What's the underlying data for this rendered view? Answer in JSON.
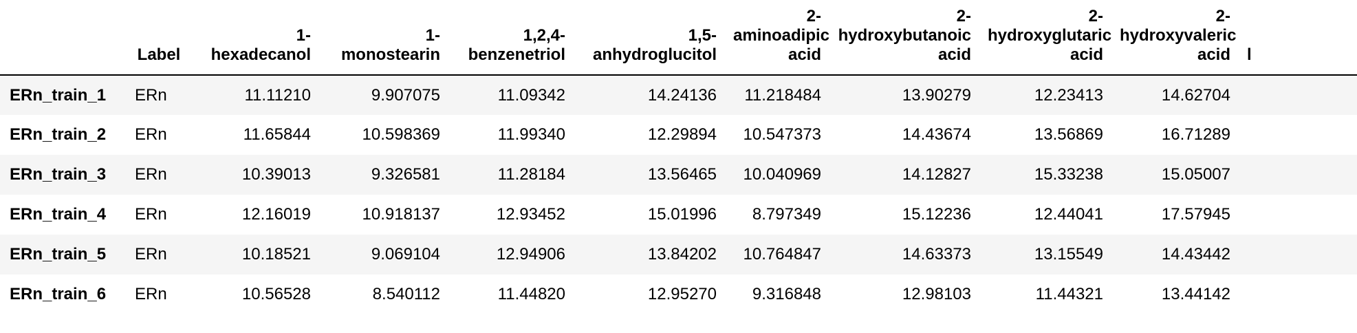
{
  "table": {
    "index_header": "",
    "columns": [
      {
        "lines": [
          "Label"
        ]
      },
      {
        "lines": [
          "1-",
          "hexadecanol"
        ]
      },
      {
        "lines": [
          "1-",
          "monostearin"
        ]
      },
      {
        "lines": [
          "1,2,4-",
          "benzenetriol"
        ]
      },
      {
        "lines": [
          "1,5-",
          "anhydroglucitol"
        ]
      },
      {
        "lines": [
          "2-",
          "aminoadipic",
          "acid"
        ]
      },
      {
        "lines": [
          "2-",
          "hydroxybutanoic",
          "acid"
        ]
      },
      {
        "lines": [
          "2-",
          "hydroxyglutaric",
          "acid"
        ]
      },
      {
        "lines": [
          "2-",
          "hydroxyvaleric",
          "acid"
        ]
      },
      {
        "lines": [
          "",
          "",
          "l"
        ]
      }
    ],
    "rows": [
      {
        "index": "ERn_train_1",
        "cells": [
          "ERn",
          "11.11210",
          "9.907075",
          "11.09342",
          "14.24136",
          "11.218484",
          "13.90279",
          "12.23413",
          "14.62704",
          ""
        ]
      },
      {
        "index": "ERn_train_2",
        "cells": [
          "ERn",
          "11.65844",
          "10.598369",
          "11.99340",
          "12.29894",
          "10.547373",
          "14.43674",
          "13.56869",
          "16.71289",
          ""
        ]
      },
      {
        "index": "ERn_train_3",
        "cells": [
          "ERn",
          "10.39013",
          "9.326581",
          "11.28184",
          "13.56465",
          "10.040969",
          "14.12827",
          "15.33238",
          "15.05007",
          ""
        ]
      },
      {
        "index": "ERn_train_4",
        "cells": [
          "ERn",
          "12.16019",
          "10.918137",
          "12.93452",
          "15.01996",
          "8.797349",
          "15.12236",
          "12.44041",
          "17.57945",
          ""
        ]
      },
      {
        "index": "ERn_train_5",
        "cells": [
          "ERn",
          "10.18521",
          "9.069104",
          "12.94906",
          "13.84202",
          "10.764847",
          "14.63373",
          "13.15549",
          "14.43442",
          ""
        ]
      },
      {
        "index": "ERn_train_6",
        "cells": [
          "ERn",
          "10.56528",
          "8.540112",
          "11.44820",
          "12.95270",
          "9.316848",
          "12.98103",
          "11.44321",
          "13.44142",
          ""
        ]
      }
    ]
  }
}
